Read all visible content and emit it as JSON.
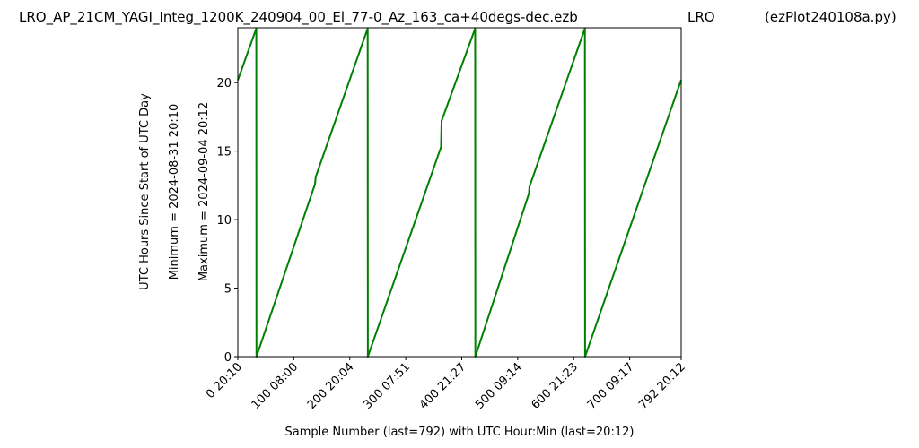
{
  "header": {
    "filename": "LRO_AP_21CM_YAGI_Integ_1200K_240904_00_El_77-0_Az_163_ca+40degs-dec.ezb",
    "station": "LRO",
    "program": "(ezPlot240108a.py)"
  },
  "chart_data": {
    "type": "line",
    "title": "LRO_AP_21CM_YAGI_Integ_1200K_240904_00_El_77-0_Az_163_ca+40degs-dec.ezb",
    "xlabel": "Sample Number (last=792) with UTC Hour:Min (last=20:12)",
    "ylabel_lines": [
      "UTC Hours Since Start of UTC Day",
      "Minimum = 2024-08-31   20:10",
      "Maximum = 2024-09-04   20:12"
    ],
    "xlim": [
      0,
      792
    ],
    "ylim": [
      0,
      24
    ],
    "color": "#008000",
    "grid": false,
    "x_ticks": [
      {
        "value": 0,
        "label": "0  20:10"
      },
      {
        "value": 100,
        "label": "100  08:00"
      },
      {
        "value": 200,
        "label": "200  20:04"
      },
      {
        "value": 300,
        "label": "300  07:51"
      },
      {
        "value": 400,
        "label": "400  21:27"
      },
      {
        "value": 500,
        "label": "500  09:14"
      },
      {
        "value": 600,
        "label": "600  21:23"
      },
      {
        "value": 700,
        "label": "700  09:17"
      },
      {
        "value": 792,
        "label": "792  20:12"
      }
    ],
    "y_ticks": [
      0,
      5,
      10,
      15,
      20
    ],
    "series": [
      {
        "x": [
          0,
          33,
          33.3,
          138,
          139,
          232,
          232.3,
          363,
          364,
          424,
          424.3,
          520,
          521,
          620,
          620.3,
          792
        ],
        "y": [
          20.17,
          23.95,
          0.0,
          12.6,
          13.1,
          23.95,
          0.0,
          15.3,
          17.2,
          23.95,
          0.0,
          11.9,
          12.4,
          23.95,
          0.0,
          20.2
        ]
      }
    ]
  }
}
